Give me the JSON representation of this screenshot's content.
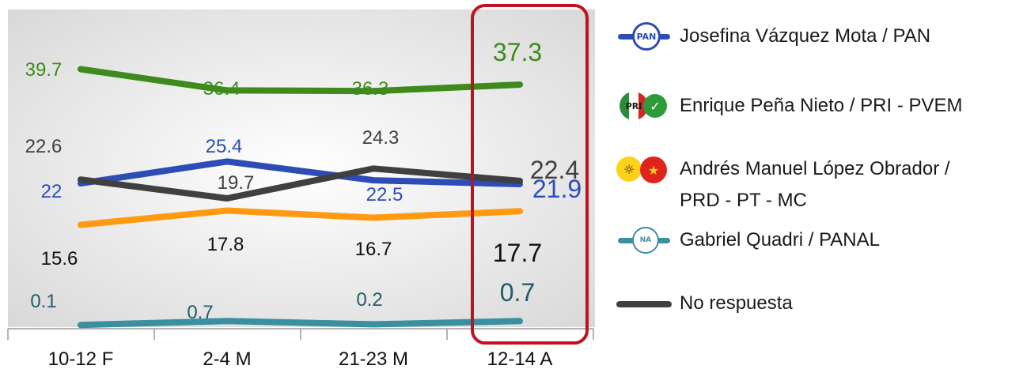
{
  "chart_data": {
    "type": "line",
    "categories": [
      "10-12 F",
      "2-4 M",
      "21-23 M",
      "12-14 A"
    ],
    "ylim": [
      0,
      45
    ],
    "grid": false,
    "legend_position": "right",
    "highlighted_category": "12-14 A",
    "series": [
      {
        "name": "Josefina Vázquez Mota / PAN",
        "key": "pan",
        "color": "#2d4db5",
        "values": [
          22,
          25.4,
          22.5,
          21.9
        ]
      },
      {
        "name": "Enrique Peña Nieto / PRI - PVEM",
        "key": "pri",
        "color": "#3e8a1c",
        "values": [
          39.7,
          36.4,
          36.3,
          37.3
        ]
      },
      {
        "name": "Andrés Manuel López Obrador / PRD - PT - MC",
        "key": "prd",
        "color": "#ff9a12",
        "values": [
          15.6,
          17.8,
          16.7,
          17.7
        ]
      },
      {
        "name": "Gabriel Quadri / PANAL",
        "key": "panal",
        "color": "#3a8fa0",
        "values": [
          0.1,
          0.7,
          0.2,
          0.7
        ]
      },
      {
        "name": "No respuesta",
        "key": "nr",
        "color": "#404040",
        "values": [
          22.6,
          19.7,
          24.3,
          22.4
        ]
      }
    ]
  },
  "labels": {
    "pri": [
      "39.7",
      "36.4",
      "36.3",
      "37.3"
    ],
    "pan": [
      "22",
      "25.4",
      "22.5",
      "21.9"
    ],
    "nr": [
      "22.6",
      "19.7",
      "24.3",
      "22.4"
    ],
    "prd": [
      "15.6",
      "17.8",
      "16.7",
      "17.7"
    ],
    "panal": [
      "0.1",
      "0.7",
      "0.2",
      "0.7"
    ]
  },
  "label_colors": {
    "pri": "#3e8a1c",
    "pan": "#2d4db5",
    "nr": "#404040",
    "prd": "#111111",
    "panal": "#215d68"
  },
  "legend": {
    "pan": {
      "line1": "Josefina Vázquez Mota / PAN",
      "logo_text": "PAN"
    },
    "pri": {
      "line1": "Enrique Peña Nieto / PRI - PVEM",
      "logo_text": "PRI"
    },
    "prd": {
      "line1": "Andrés Manuel López Obrador /",
      "line2": "PRD - PT - MC",
      "logo_text": "PRD"
    },
    "panal": {
      "line1": "Gabriel Quadri / PANAL",
      "logo_text": "NA"
    },
    "nr": {
      "line1": "No respuesta"
    }
  },
  "colors": {
    "highlight_border": "#c0121e",
    "plot_background": "#eeeeee",
    "axis": "#9a9a9a"
  }
}
